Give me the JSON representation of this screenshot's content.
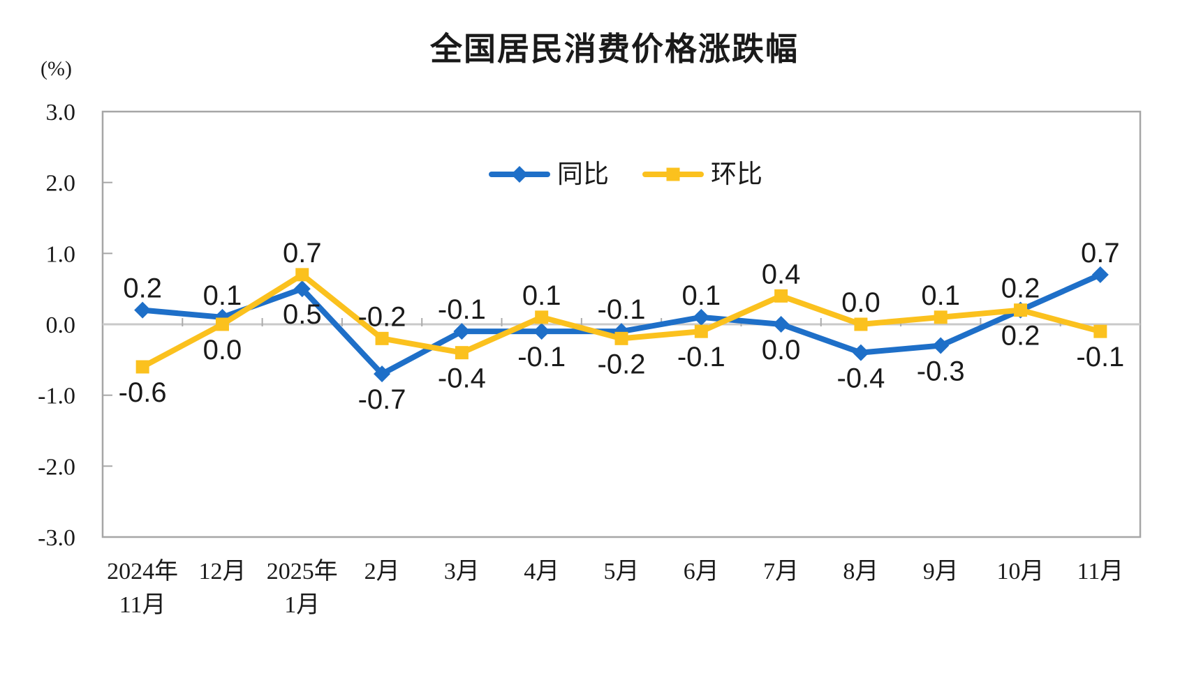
{
  "page": {
    "background": "#ffffff"
  },
  "chart_data": {
    "type": "line",
    "title": "全国居民消费价格涨跌幅",
    "unit_label": "(%)",
    "categories": [
      [
        "2024年",
        "11月"
      ],
      [
        "12月"
      ],
      [
        "2025年",
        "1月"
      ],
      [
        "2月"
      ],
      [
        "3月"
      ],
      [
        "4月"
      ],
      [
        "5月"
      ],
      [
        "6月"
      ],
      [
        "7月"
      ],
      [
        "8月"
      ],
      [
        "9月"
      ],
      [
        "10月"
      ],
      [
        "11月"
      ]
    ],
    "series": [
      {
        "name": "同比",
        "color": "#1E6FC8",
        "marker": "diamond",
        "values": [
          0.2,
          0.1,
          0.5,
          -0.7,
          -0.1,
          -0.1,
          -0.1,
          0.1,
          0.0,
          -0.4,
          -0.3,
          0.2,
          0.7
        ]
      },
      {
        "name": "环比",
        "color": "#FBC11E",
        "marker": "square",
        "values": [
          -0.6,
          0.0,
          0.7,
          -0.2,
          -0.4,
          0.1,
          -0.2,
          -0.1,
          0.4,
          0.0,
          0.1,
          0.2,
          -0.1
        ]
      }
    ],
    "ylim": [
      -3.0,
      3.0
    ],
    "yticks": [
      3.0,
      2.0,
      1.0,
      0.0,
      -1.0,
      -2.0,
      -3.0
    ],
    "ytick_labels": [
      "3.0",
      "2.0",
      "1.0",
      "0.0",
      "-1.0",
      "-2.0",
      "-3.0"
    ],
    "grid": "zero-line-only",
    "legend_position": "top-center-inside",
    "data_labels_decimals": 1,
    "axis_color": "#A6A6A6",
    "zero_line_color": "#C9C9C9",
    "tick_color": "#ABABAB",
    "text_color": "#1A1A1A"
  }
}
